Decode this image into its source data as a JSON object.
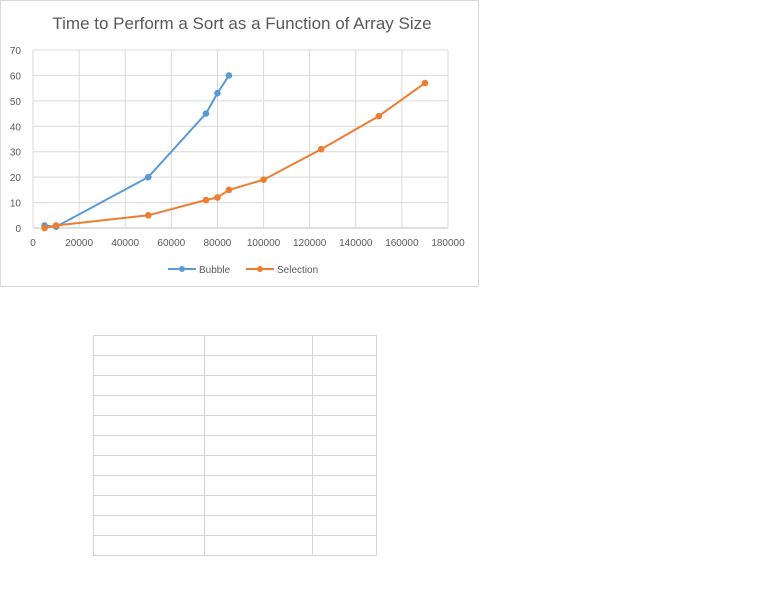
{
  "chart_data": {
    "type": "line",
    "title": "Time  to Perform a Sort as a Function of Array Size",
    "xlabel": "",
    "ylabel": "",
    "xlim": [
      0,
      180000
    ],
    "ylim": [
      0,
      70
    ],
    "xticks": [
      0,
      20000,
      40000,
      60000,
      80000,
      100000,
      120000,
      140000,
      160000,
      180000
    ],
    "yticks": [
      0,
      10,
      20,
      30,
      40,
      50,
      60,
      70
    ],
    "grid": true,
    "legend_position": "bottom",
    "series": [
      {
        "name": "Bubble",
        "color": "#5b9bd5",
        "x": [
          5000,
          10000,
          50000,
          75000,
          80000,
          85000
        ],
        "y": [
          1,
          0.5,
          20,
          45,
          53,
          60
        ]
      },
      {
        "name": "Selection",
        "color": "#ed7d31",
        "x": [
          5000,
          10000,
          50000,
          75000,
          80000,
          85000,
          100000,
          125000,
          150000,
          170000
        ],
        "y": [
          0,
          1,
          5,
          11,
          12,
          15,
          19,
          31,
          44,
          57
        ]
      }
    ]
  },
  "sheet": {
    "rows": 11,
    "cols": 3
  }
}
